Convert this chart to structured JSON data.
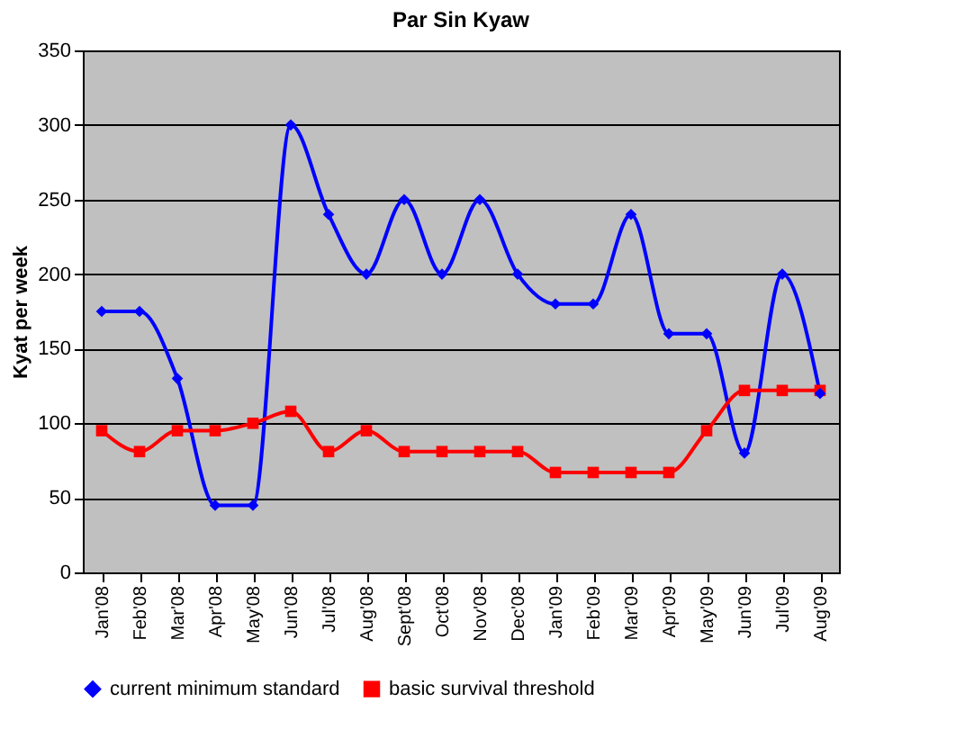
{
  "chart_data": {
    "type": "line",
    "title": "Par Sin Kyaw",
    "ylabel": "Kyat per week",
    "categories": [
      "Jan'08",
      "Feb'08",
      "Mar'08",
      "Apr'08",
      "May'08",
      "Jun'08",
      "Jul'08",
      "Aug'08",
      "Sept'08",
      "Oct'08",
      "Nov'08",
      "Dec'08",
      "Jan'09",
      "Feb'09",
      "Mar'09",
      "Apr'09",
      "May'09",
      "Jun'09",
      "Jul'09",
      "Aug'09"
    ],
    "series": [
      {
        "name": "current minimum standard",
        "color": "#0000ff",
        "marker": "diamond",
        "values": [
          175,
          175,
          130,
          45,
          45,
          300,
          240,
          200,
          250,
          200,
          250,
          200,
          180,
          180,
          240,
          160,
          160,
          80,
          200,
          120
        ]
      },
      {
        "name": "basic survival threshold",
        "color": "#ff0000",
        "marker": "square",
        "values": [
          95,
          81,
          95,
          95,
          100,
          108,
          81,
          95,
          81,
          81,
          81,
          81,
          67,
          67,
          67,
          67,
          95,
          122,
          122,
          122
        ]
      }
    ],
    "ylim": [
      0,
      350
    ],
    "yticks": [
      0,
      50,
      100,
      150,
      200,
      250,
      300,
      350
    ],
    "grid": "y",
    "legend": "bottom"
  }
}
